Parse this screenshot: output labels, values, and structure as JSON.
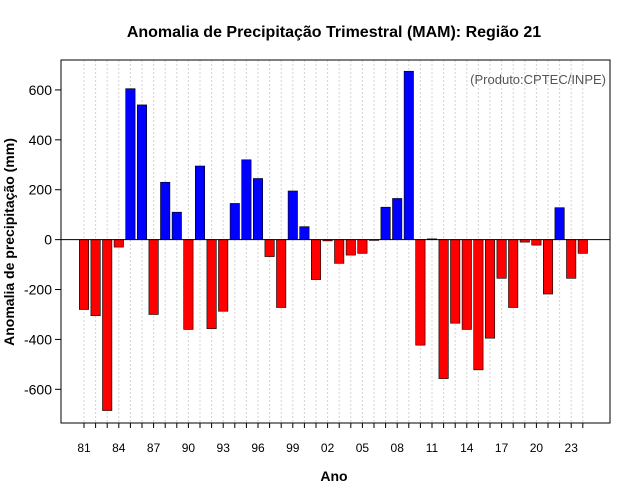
{
  "chart_data": {
    "type": "bar",
    "title": "Anomalia de Precipitação Trimestral (MAM): Região 21",
    "xlabel": "Ano",
    "ylabel": "Anomalia de precipitação (mm)",
    "credit": "(Produto:CPTEC/INPE)",
    "ylim": [
      -735,
      720
    ],
    "yticks": [
      -600,
      -400,
      -200,
      0,
      200,
      400,
      600
    ],
    "years": [
      1981,
      1982,
      1983,
      1984,
      1985,
      1986,
      1987,
      1988,
      1989,
      1990,
      1991,
      1992,
      1993,
      1994,
      1995,
      1996,
      1997,
      1998,
      1999,
      2000,
      2001,
      2002,
      2003,
      2004,
      2005,
      2006,
      2007,
      2008,
      2009,
      2010,
      2011,
      2012,
      2013,
      2014,
      2015,
      2016,
      2017,
      2018,
      2019,
      2020,
      2021,
      2022,
      2023,
      2024
    ],
    "values": [
      -280,
      -305,
      -685,
      -30,
      605,
      540,
      -300,
      230,
      110,
      -360,
      295,
      -357,
      -287,
      145,
      320,
      245,
      -68,
      -272,
      195,
      52,
      -160,
      -5,
      -95,
      -62,
      -55,
      -3,
      130,
      165,
      675,
      -423,
      3,
      -557,
      -335,
      -360,
      -522,
      -395,
      -155,
      -272,
      -10,
      -22,
      -218,
      128,
      -155,
      -55
    ],
    "xtick_labels": [
      {
        "label": "81",
        "year": 1981
      },
      {
        "label": "84",
        "year": 1984
      },
      {
        "label": "87",
        "year": 1987
      },
      {
        "label": "90",
        "year": 1990
      },
      {
        "label": "93",
        "year": 1993
      },
      {
        "label": "96",
        "year": 1996
      },
      {
        "label": "99",
        "year": 1999
      },
      {
        "label": "02",
        "year": 2002
      },
      {
        "label": "05",
        "year": 2005
      },
      {
        "label": "08",
        "year": 2008
      },
      {
        "label": "11",
        "year": 2011
      },
      {
        "label": "14",
        "year": 2014
      },
      {
        "label": "17",
        "year": 2017
      },
      {
        "label": "20",
        "year": 2020
      },
      {
        "label": "23",
        "year": 2023
      }
    ],
    "colors": {
      "positive": "#0000ff",
      "negative": "#ff0000",
      "grid": "#d3d3d3",
      "edge": "#000000"
    },
    "grid": true
  }
}
